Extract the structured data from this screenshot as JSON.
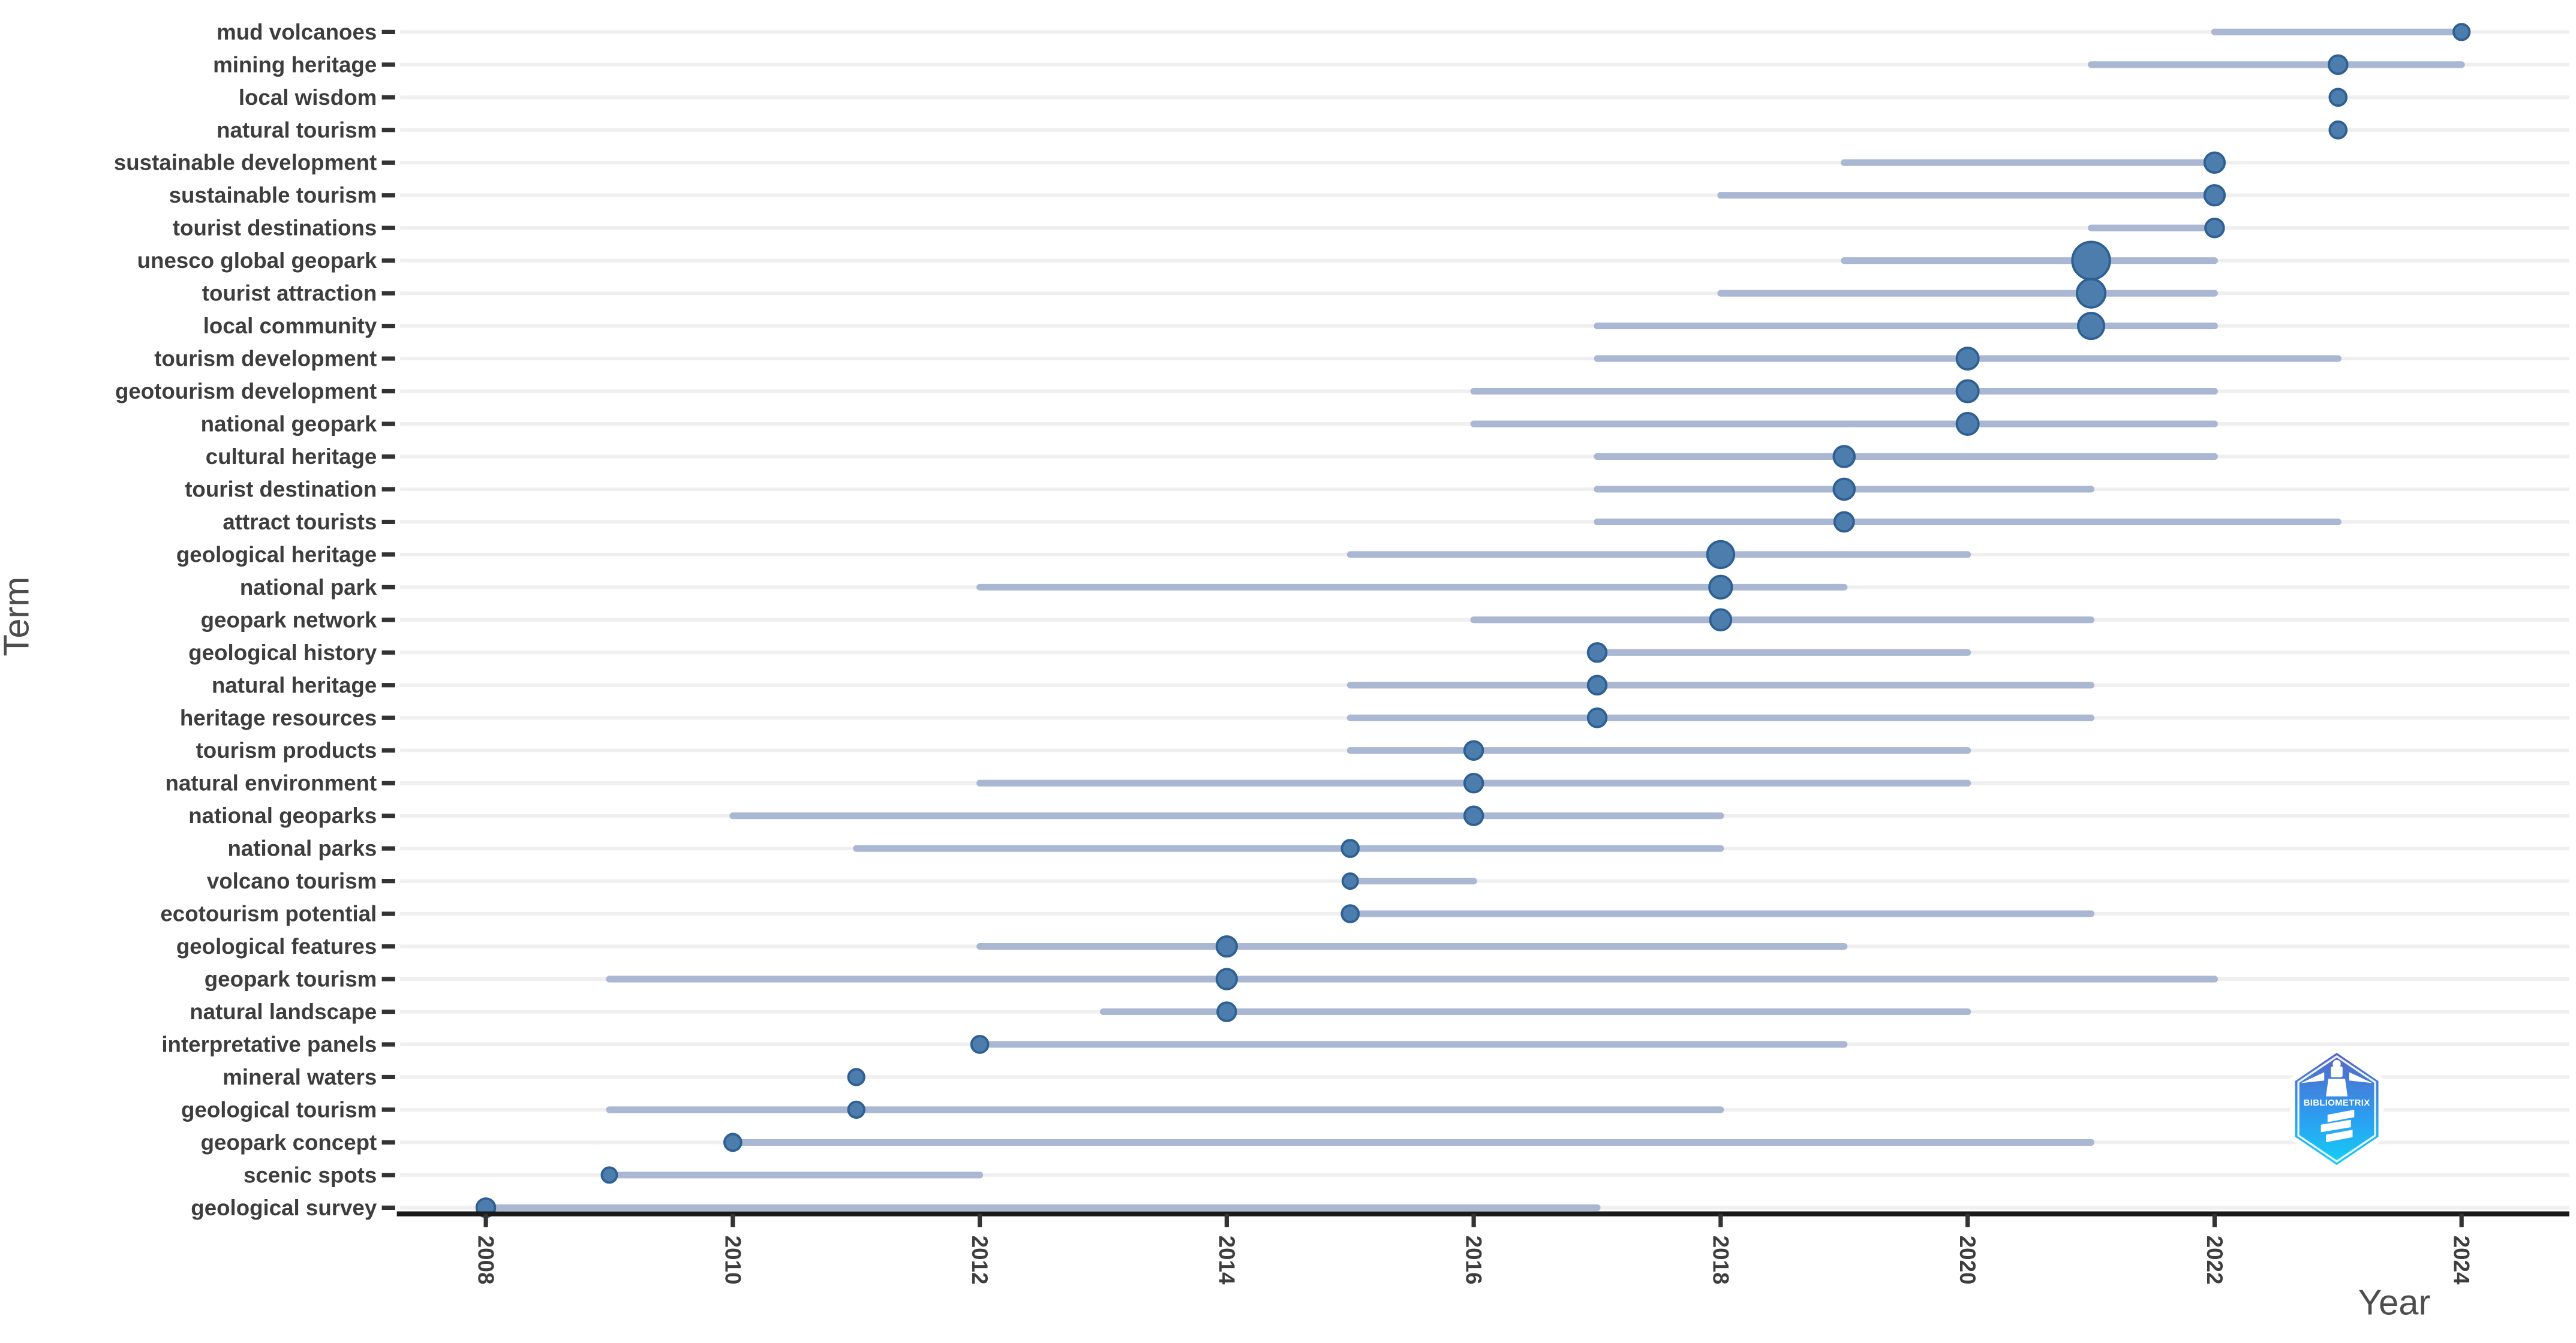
{
  "page": {
    "background": "#ffffff"
  },
  "logo": {
    "label": "BIBLIOMETRIX",
    "gradient_top": "#5a63c2",
    "gradient_mid": "#2d9bf0",
    "gradient_bottom": "#12d3f5",
    "border_color": "#ffffff",
    "text_color": "#ffffff"
  },
  "chart_data": {
    "type": "scatter",
    "variant": "trend-topics-dot-range",
    "title": "",
    "xlabel": "Year",
    "ylabel": "Term",
    "x_ticks": [
      2008,
      2010,
      2012,
      2014,
      2016,
      2018,
      2020,
      2022,
      2024
    ],
    "xlim": [
      2007.3,
      2024.6
    ],
    "grid": "horizontal-only",
    "legend": "none",
    "colors": {
      "dot_fill": "#4c7dac",
      "dot_stroke": "#2f6094",
      "range_bar": "#aab7d3",
      "gridline": "#efefef",
      "axis_line": "#1a1a1a",
      "tick_mark": "#333333",
      "tick_label": "#3d3d3d",
      "axis_title": "#4d4d4d"
    },
    "terms": [
      {
        "label": "mud volcanoes",
        "q1": 2022,
        "median": 2024,
        "q3": 2024,
        "dot": 9.5
      },
      {
        "label": "mining heritage",
        "q1": 2021,
        "median": 2023,
        "q3": 2024,
        "dot": 11
      },
      {
        "label": "local wisdom",
        "q1": 2023,
        "median": 2023,
        "q3": 2023,
        "dot": 10
      },
      {
        "label": "natural tourism",
        "q1": 2023,
        "median": 2023,
        "q3": 2023,
        "dot": 10
      },
      {
        "label": "sustainable development",
        "q1": 2019,
        "median": 2022,
        "q3": 2022,
        "dot": 12
      },
      {
        "label": "sustainable tourism",
        "q1": 2018,
        "median": 2022,
        "q3": 2022,
        "dot": 12
      },
      {
        "label": "tourist destinations",
        "q1": 2021,
        "median": 2022,
        "q3": 2022,
        "dot": 11
      },
      {
        "label": "unesco global geopark",
        "q1": 2019,
        "median": 2021,
        "q3": 2022,
        "dot": 22.5
      },
      {
        "label": "tourist attraction",
        "q1": 2018,
        "median": 2021,
        "q3": 2022,
        "dot": 17
      },
      {
        "label": "local community",
        "q1": 2017,
        "median": 2021,
        "q3": 2022,
        "dot": 15.5
      },
      {
        "label": "tourism development",
        "q1": 2017,
        "median": 2020,
        "q3": 2023,
        "dot": 13
      },
      {
        "label": "geotourism development",
        "q1": 2016,
        "median": 2020,
        "q3": 2022,
        "dot": 13
      },
      {
        "label": "national geopark",
        "q1": 2016,
        "median": 2020,
        "q3": 2022,
        "dot": 13
      },
      {
        "label": "cultural heritage",
        "q1": 2017,
        "median": 2019,
        "q3": 2022,
        "dot": 12.5
      },
      {
        "label": "tourist destination",
        "q1": 2017,
        "median": 2019,
        "q3": 2021,
        "dot": 12.5
      },
      {
        "label": "attract tourists",
        "q1": 2017,
        "median": 2019,
        "q3": 2023,
        "dot": 11.5
      },
      {
        "label": "geological heritage",
        "q1": 2015,
        "median": 2018,
        "q3": 2020,
        "dot": 16
      },
      {
        "label": "national park",
        "q1": 2012,
        "median": 2018,
        "q3": 2019,
        "dot": 13.5
      },
      {
        "label": "geopark network",
        "q1": 2016,
        "median": 2018,
        "q3": 2021,
        "dot": 12.5
      },
      {
        "label": "geological history",
        "q1": 2017,
        "median": 2017,
        "q3": 2020,
        "dot": 11
      },
      {
        "label": "natural heritage",
        "q1": 2015,
        "median": 2017,
        "q3": 2021,
        "dot": 11
      },
      {
        "label": "heritage resources",
        "q1": 2015,
        "median": 2017,
        "q3": 2021,
        "dot": 11
      },
      {
        "label": "tourism products",
        "q1": 2015,
        "median": 2016,
        "q3": 2020,
        "dot": 11
      },
      {
        "label": "natural environment",
        "q1": 2012,
        "median": 2016,
        "q3": 2020,
        "dot": 11
      },
      {
        "label": "national geoparks",
        "q1": 2010,
        "median": 2016,
        "q3": 2018,
        "dot": 11
      },
      {
        "label": "national parks",
        "q1": 2011,
        "median": 2015,
        "q3": 2018,
        "dot": 10
      },
      {
        "label": "volcano tourism",
        "q1": 2015,
        "median": 2015,
        "q3": 2016,
        "dot": 9
      },
      {
        "label": "ecotourism potential",
        "q1": 2015,
        "median": 2015,
        "q3": 2021,
        "dot": 10
      },
      {
        "label": "geological features",
        "q1": 2012,
        "median": 2014,
        "q3": 2019,
        "dot": 12
      },
      {
        "label": "geopark tourism",
        "q1": 2009,
        "median": 2014,
        "q3": 2022,
        "dot": 12
      },
      {
        "label": "natural landscape",
        "q1": 2013,
        "median": 2014,
        "q3": 2020,
        "dot": 11
      },
      {
        "label": "interpretative panels",
        "q1": 2012,
        "median": 2012,
        "q3": 2019,
        "dot": 10
      },
      {
        "label": "mineral waters",
        "q1": 2011,
        "median": 2011,
        "q3": 2011,
        "dot": 9.5
      },
      {
        "label": "geological tourism",
        "q1": 2009,
        "median": 2011,
        "q3": 2018,
        "dot": 9.5
      },
      {
        "label": "geopark concept",
        "q1": 2010,
        "median": 2010,
        "q3": 2021,
        "dot": 10
      },
      {
        "label": "scenic spots",
        "q1": 2009,
        "median": 2009,
        "q3": 2012,
        "dot": 9
      },
      {
        "label": "geological survey",
        "q1": 2008,
        "median": 2008,
        "q3": 2017,
        "dot": 11
      }
    ]
  }
}
